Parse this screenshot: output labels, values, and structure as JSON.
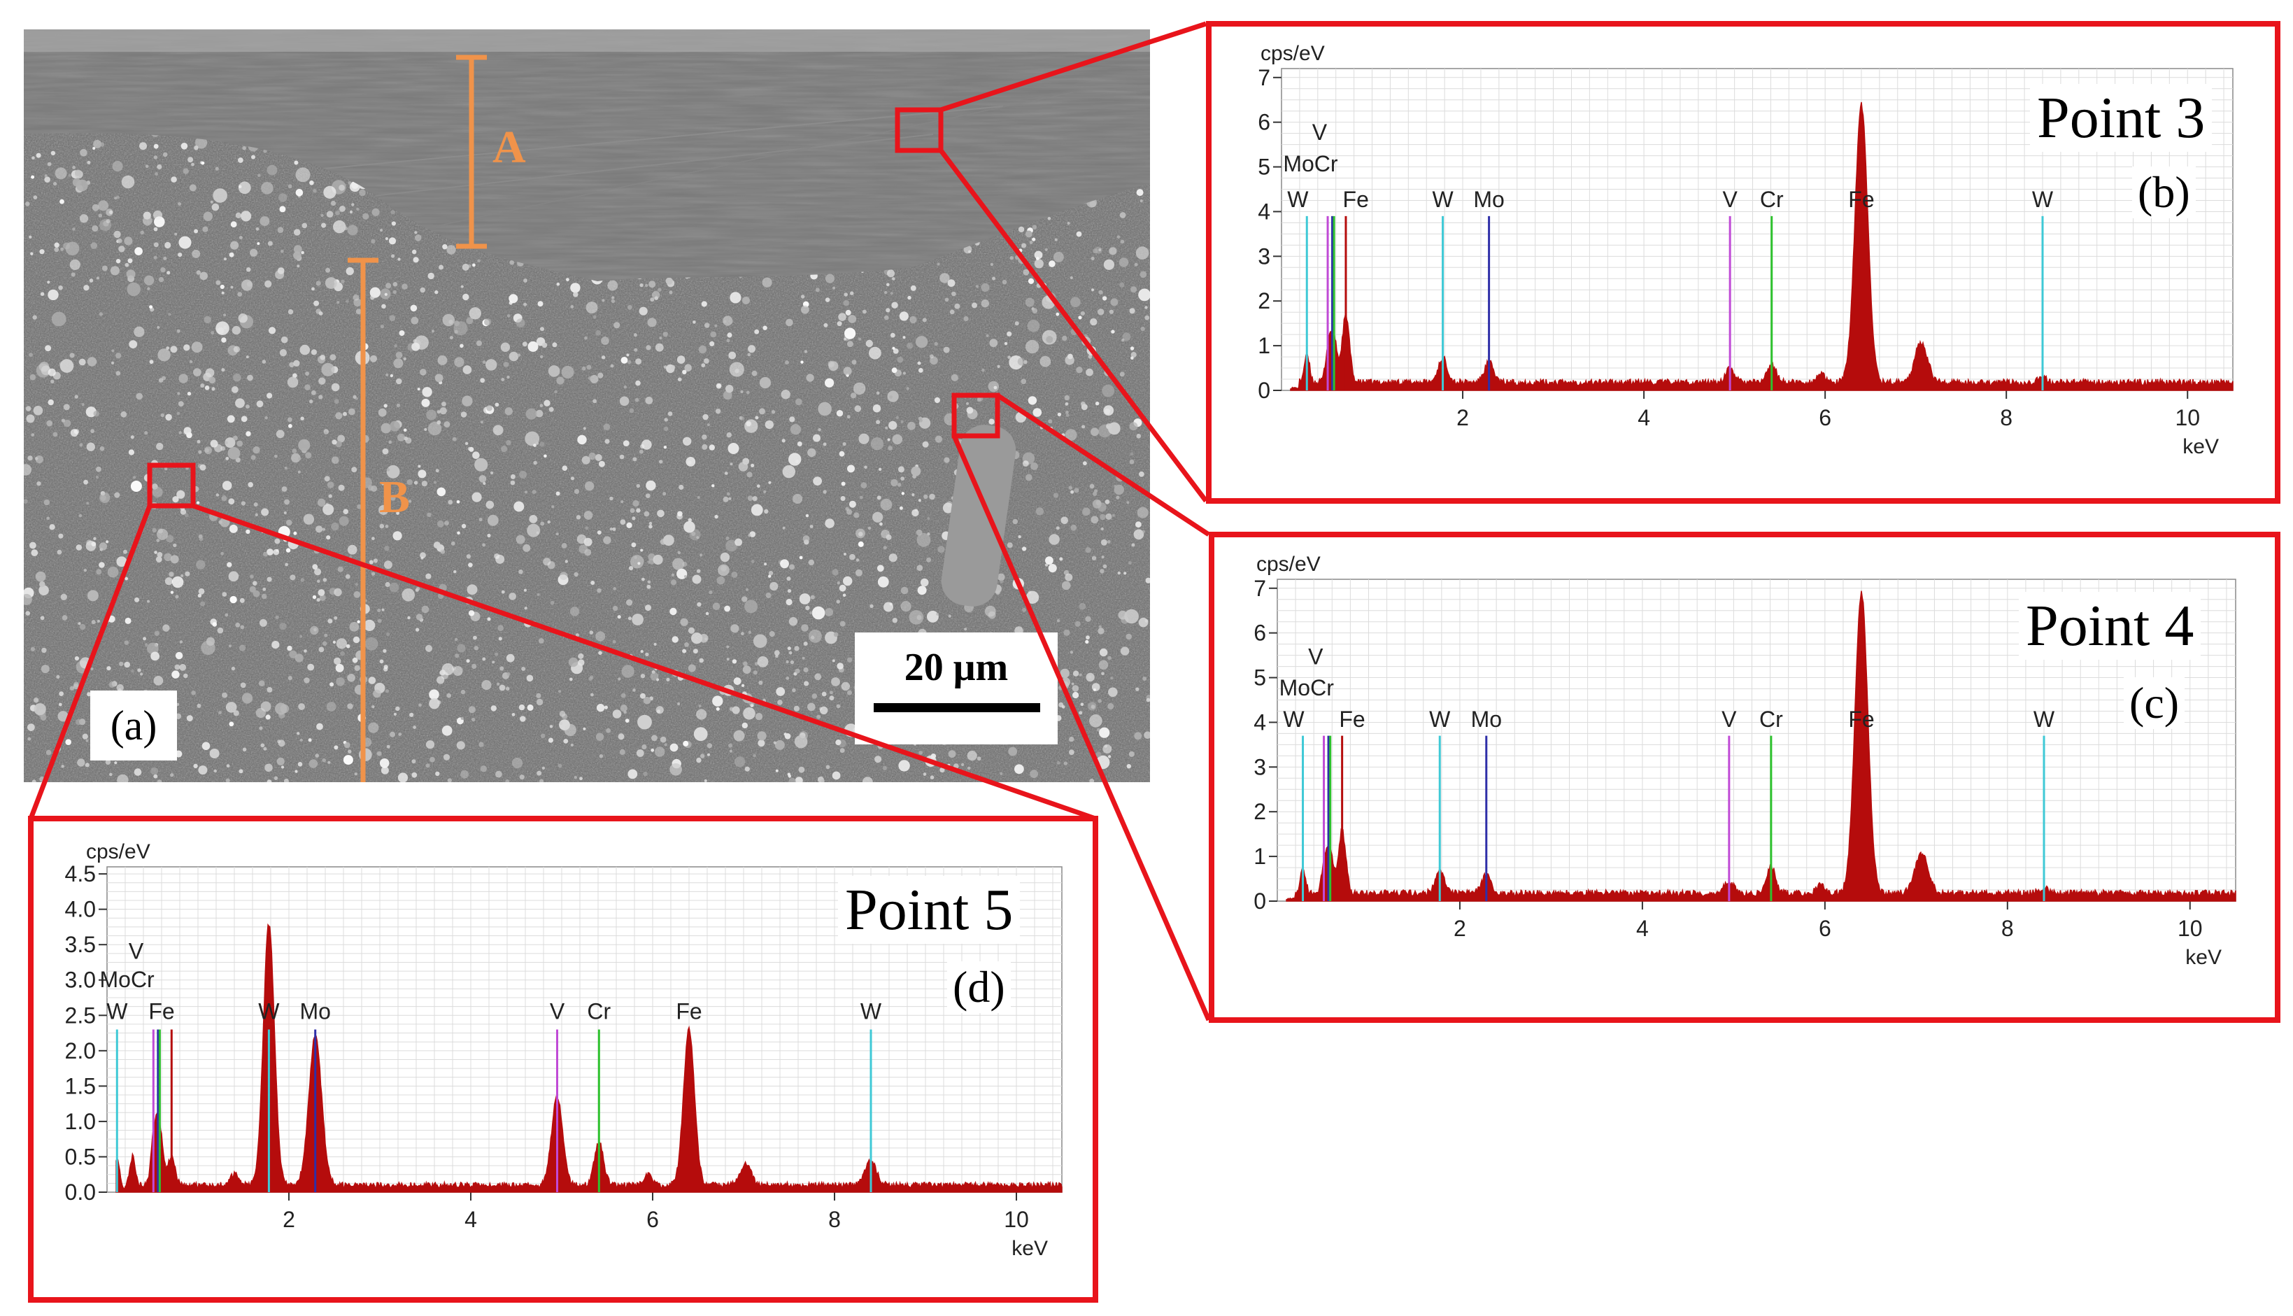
{
  "figure": {
    "panel_a": {
      "label": "(a)",
      "scale_bar": "20 μm",
      "layer_labels": [
        "A",
        "B"
      ]
    },
    "colors": {
      "frame": "#e8141b",
      "spectrum": "#b50c0c",
      "measure": "#f0934a",
      "W": "#3fc9d6",
      "Mo": "#2f2fa8",
      "V": "#c04ad6",
      "Cr": "#2ec22e",
      "Fe": "#b50c0c"
    }
  },
  "chart_data": [
    {
      "type": "line",
      "panel": "(b)",
      "title": "Point 3",
      "xlabel": "keV",
      "ylabel": "cps/eV",
      "xlim": [
        0,
        10.5
      ],
      "ylim": [
        0,
        7.2
      ],
      "xticks": [
        2,
        4,
        6,
        8,
        10
      ],
      "yticks": [
        0,
        1,
        2,
        3,
        4,
        5,
        6,
        7
      ],
      "ytick_labels": [
        "0",
        "1",
        "2",
        "3",
        "4",
        "5",
        "6",
        "7"
      ],
      "grid": true,
      "markers": [
        {
          "el": "W",
          "x": 0.28,
          "h": 3.9
        },
        {
          "el": "V",
          "x": 0.51,
          "h": 3.9
        },
        {
          "el": "Mo",
          "x": 0.56,
          "h": 3.9
        },
        {
          "el": "Cr",
          "x": 0.58,
          "h": 3.9
        },
        {
          "el": "Fe",
          "x": 0.71,
          "h": 3.9
        },
        {
          "el": "W",
          "x": 1.78,
          "h": 3.9
        },
        {
          "el": "Mo",
          "x": 2.29,
          "h": 3.9
        },
        {
          "el": "V",
          "x": 4.95,
          "h": 3.9
        },
        {
          "el": "Cr",
          "x": 5.41,
          "h": 3.9
        },
        {
          "el": "Fe",
          "x": 6.4,
          "h": 3.9
        },
        {
          "el": "W",
          "x": 8.4,
          "h": 3.9
        }
      ],
      "stacked_labels": [
        {
          "text": "V",
          "x": 0.42,
          "y": 5.6
        },
        {
          "text": "MoCr",
          "x": 0.32,
          "y": 4.9
        },
        {
          "text": "W",
          "x": 0.18,
          "y": 4.1
        },
        {
          "text": "Fe",
          "x": 0.82,
          "y": 4.1
        },
        {
          "text": "W",
          "x": 1.78,
          "y": 4.1
        },
        {
          "text": "Mo",
          "x": 2.29,
          "y": 4.1
        },
        {
          "text": "V",
          "x": 4.95,
          "y": 4.1
        },
        {
          "text": "Cr",
          "x": 5.41,
          "y": 4.1
        },
        {
          "text": "Fe",
          "x": 6.4,
          "y": 4.1
        },
        {
          "text": "W",
          "x": 8.4,
          "y": 4.1
        }
      ],
      "background": 0.18,
      "peaks": [
        {
          "x": 0.28,
          "h": 0.6,
          "w": 0.03
        },
        {
          "x": 0.51,
          "h": 0.5,
          "w": 0.03
        },
        {
          "x": 0.57,
          "h": 1.1,
          "w": 0.04
        },
        {
          "x": 0.71,
          "h": 1.5,
          "w": 0.04
        },
        {
          "x": 1.78,
          "h": 0.55,
          "w": 0.05
        },
        {
          "x": 2.29,
          "h": 0.45,
          "w": 0.05
        },
        {
          "x": 4.95,
          "h": 0.3,
          "w": 0.05
        },
        {
          "x": 5.41,
          "h": 0.4,
          "w": 0.05
        },
        {
          "x": 5.95,
          "h": 0.2,
          "w": 0.04
        },
        {
          "x": 6.4,
          "h": 6.2,
          "w": 0.07
        },
        {
          "x": 7.06,
          "h": 0.9,
          "w": 0.07
        },
        {
          "x": 8.4,
          "h": 0.1,
          "w": 0.05
        }
      ]
    },
    {
      "type": "line",
      "panel": "(c)",
      "title": "Point 4",
      "xlabel": "keV",
      "ylabel": "cps/eV",
      "xlim": [
        0,
        10.5
      ],
      "ylim": [
        0,
        7.2
      ],
      "xticks": [
        2,
        4,
        6,
        8,
        10
      ],
      "yticks": [
        0,
        1,
        2,
        3,
        4,
        5,
        6,
        7
      ],
      "ytick_labels": [
        "0",
        "1",
        "2",
        "3",
        "4",
        "5",
        "6",
        "7"
      ],
      "grid": true,
      "markers": [
        {
          "el": "W",
          "x": 0.28,
          "h": 3.7
        },
        {
          "el": "V",
          "x": 0.51,
          "h": 3.7
        },
        {
          "el": "Mo",
          "x": 0.56,
          "h": 3.7
        },
        {
          "el": "Cr",
          "x": 0.58,
          "h": 3.7
        },
        {
          "el": "Fe",
          "x": 0.71,
          "h": 3.7
        },
        {
          "el": "W",
          "x": 1.78,
          "h": 3.7
        },
        {
          "el": "Mo",
          "x": 2.29,
          "h": 3.7
        },
        {
          "el": "V",
          "x": 4.95,
          "h": 3.7
        },
        {
          "el": "Cr",
          "x": 5.41,
          "h": 3.7
        },
        {
          "el": "Fe",
          "x": 6.4,
          "h": 3.7
        },
        {
          "el": "W",
          "x": 8.4,
          "h": 3.7
        }
      ],
      "stacked_labels": [
        {
          "text": "V",
          "x": 0.42,
          "y": 5.3
        },
        {
          "text": "MoCr",
          "x": 0.32,
          "y": 4.6
        },
        {
          "text": "W",
          "x": 0.18,
          "y": 3.9
        },
        {
          "text": "Fe",
          "x": 0.82,
          "y": 3.9
        },
        {
          "text": "W",
          "x": 1.78,
          "y": 3.9
        },
        {
          "text": "Mo",
          "x": 2.29,
          "y": 3.9
        },
        {
          "text": "V",
          "x": 4.95,
          "y": 3.9
        },
        {
          "text": "Cr",
          "x": 5.41,
          "y": 3.9
        },
        {
          "text": "Fe",
          "x": 6.4,
          "y": 3.9
        },
        {
          "text": "W",
          "x": 8.4,
          "y": 3.9
        }
      ],
      "background": 0.18,
      "peaks": [
        {
          "x": 0.28,
          "h": 0.5,
          "w": 0.03
        },
        {
          "x": 0.51,
          "h": 0.4,
          "w": 0.03
        },
        {
          "x": 0.57,
          "h": 1.0,
          "w": 0.04
        },
        {
          "x": 0.71,
          "h": 1.4,
          "w": 0.04
        },
        {
          "x": 1.78,
          "h": 0.5,
          "w": 0.05
        },
        {
          "x": 2.29,
          "h": 0.4,
          "w": 0.05
        },
        {
          "x": 4.95,
          "h": 0.25,
          "w": 0.05
        },
        {
          "x": 5.41,
          "h": 0.6,
          "w": 0.05
        },
        {
          "x": 5.95,
          "h": 0.2,
          "w": 0.04
        },
        {
          "x": 6.4,
          "h": 6.7,
          "w": 0.07
        },
        {
          "x": 7.06,
          "h": 0.9,
          "w": 0.07
        },
        {
          "x": 8.4,
          "h": 0.1,
          "w": 0.05
        }
      ]
    },
    {
      "type": "line",
      "panel": "(d)",
      "title": "Point 5",
      "xlabel": "keV",
      "ylabel": "cps/eV",
      "xlim": [
        0,
        10.5
      ],
      "ylim": [
        0,
        4.6
      ],
      "xticks": [
        2,
        4,
        6,
        8,
        10
      ],
      "yticks": [
        0,
        0.5,
        1,
        1.5,
        2,
        2.5,
        3,
        3.5,
        4,
        4.5
      ],
      "ytick_labels": [
        "0.0",
        "0.5",
        "1.0",
        "1.5",
        "2.0",
        "2.5",
        "3.0",
        "3.5",
        "4.0",
        "4.5"
      ],
      "grid": true,
      "markers": [
        {
          "el": "W",
          "x": 0.11,
          "h": 2.3
        },
        {
          "el": "V",
          "x": 0.51,
          "h": 2.3
        },
        {
          "el": "Mo",
          "x": 0.56,
          "h": 2.3
        },
        {
          "el": "Cr",
          "x": 0.58,
          "h": 2.3
        },
        {
          "el": "Fe",
          "x": 0.71,
          "h": 2.3
        },
        {
          "el": "W",
          "x": 1.78,
          "h": 2.3
        },
        {
          "el": "Mo",
          "x": 2.29,
          "h": 2.3
        },
        {
          "el": "V",
          "x": 4.95,
          "h": 2.3
        },
        {
          "el": "Cr",
          "x": 5.41,
          "h": 2.3
        },
        {
          "el": "Fe",
          "x": 6.4,
          "h": 2.3
        },
        {
          "el": "W",
          "x": 8.4,
          "h": 2.3
        }
      ],
      "stacked_labels": [
        {
          "text": "V",
          "x": 0.32,
          "y": 3.3
        },
        {
          "text": "MoCr",
          "x": 0.22,
          "y": 2.9
        },
        {
          "text": "W",
          "x": 0.11,
          "y": 2.45
        },
        {
          "text": "Fe",
          "x": 0.6,
          "y": 2.45
        },
        {
          "text": "W",
          "x": 1.78,
          "y": 2.45
        },
        {
          "text": "Mo",
          "x": 2.29,
          "y": 2.45
        },
        {
          "text": "V",
          "x": 4.95,
          "y": 2.45
        },
        {
          "text": "Cr",
          "x": 5.41,
          "y": 2.45
        },
        {
          "text": "Fe",
          "x": 6.4,
          "y": 2.45
        },
        {
          "text": "W",
          "x": 8.4,
          "y": 2.45
        }
      ],
      "background": 0.1,
      "peaks": [
        {
          "x": 0.11,
          "h": 0.45,
          "w": 0.03
        },
        {
          "x": 0.28,
          "h": 0.4,
          "w": 0.03
        },
        {
          "x": 0.51,
          "h": 0.5,
          "w": 0.03
        },
        {
          "x": 0.57,
          "h": 0.9,
          "w": 0.04
        },
        {
          "x": 0.71,
          "h": 0.4,
          "w": 0.04
        },
        {
          "x": 1.4,
          "h": 0.15,
          "w": 0.05
        },
        {
          "x": 1.78,
          "h": 3.7,
          "w": 0.06
        },
        {
          "x": 2.29,
          "h": 2.1,
          "w": 0.07
        },
        {
          "x": 4.95,
          "h": 1.25,
          "w": 0.06
        },
        {
          "x": 5.41,
          "h": 0.6,
          "w": 0.05
        },
        {
          "x": 5.95,
          "h": 0.15,
          "w": 0.04
        },
        {
          "x": 6.4,
          "h": 2.2,
          "w": 0.06
        },
        {
          "x": 7.02,
          "h": 0.3,
          "w": 0.06
        },
        {
          "x": 8.4,
          "h": 0.35,
          "w": 0.06
        }
      ]
    }
  ]
}
